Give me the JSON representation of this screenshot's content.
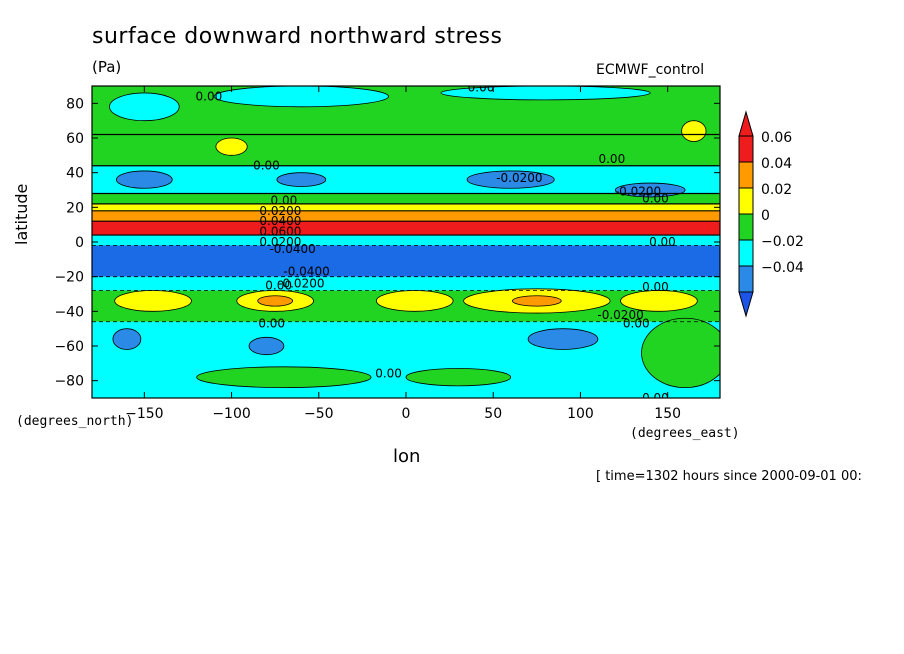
{
  "chart_data": {
    "type": "heatmap",
    "title": "surface downward northward stress",
    "units": "(Pa)",
    "source_label": "ECMWF_control",
    "xlabel": "lon",
    "ylabel": "latitude",
    "x_unit_label": "(degrees_east)",
    "y_unit_label": "(degrees_north)",
    "time_note": "[ time=1302 hours since 2000-09-01 00:",
    "xlim": [
      -180,
      180
    ],
    "ylim": [
      -90,
      90
    ],
    "x_ticks": [
      -150,
      -100,
      -50,
      0,
      50,
      100,
      150
    ],
    "x_tick_labels": [
      "−150",
      "−100",
      "−50",
      "0",
      "50",
      "100",
      "150"
    ],
    "y_ticks": [
      80,
      60,
      40,
      20,
      0,
      -20,
      -40,
      -60,
      -80
    ],
    "y_tick_labels": [
      "80",
      "60",
      "40",
      "20",
      "0",
      "−20",
      "−40",
      "−60",
      "−80"
    ],
    "colorbar": {
      "levels": [
        "0.06",
        "0.04",
        "0.02",
        "0",
        "−0.02",
        "−0.04"
      ],
      "colors": [
        "#ee1c1c",
        "#ff9a00",
        "#ffff00",
        "#22d422",
        "#00ffff",
        "#2a8ae6"
      ],
      "end_colors": {
        "top": "#ee1c1c",
        "bottom": "#1b54e6"
      }
    },
    "latitude_bands": [
      {
        "lat": [
          62,
          90
        ],
        "color": "#22d422"
      },
      {
        "lat": [
          44,
          62
        ],
        "color": "#22d422"
      },
      {
        "lat": [
          28,
          44
        ],
        "color": "#00ffff"
      },
      {
        "lat": [
          22,
          28
        ],
        "color": "#22d422"
      },
      {
        "lat": [
          18,
          22
        ],
        "color": "#ffff00"
      },
      {
        "lat": [
          12,
          18
        ],
        "color": "#ff9a00"
      },
      {
        "lat": [
          4,
          12
        ],
        "color": "#ee1c1c"
      },
      {
        "lat": [
          -2,
          4
        ],
        "color": "#00ffff"
      },
      {
        "lat": [
          -20,
          -2
        ],
        "color": "#1b6ae6"
      },
      {
        "lat": [
          -28,
          -20
        ],
        "color": "#00ffff"
      },
      {
        "lat": [
          -46,
          -28
        ],
        "color": "#22d422"
      },
      {
        "lat": [
          -90,
          -46
        ],
        "color": "#00ffff"
      }
    ],
    "blobs": [
      {
        "lon": -150,
        "lat": 78,
        "rlon": 20,
        "rlat": 8,
        "color": "#00ffff"
      },
      {
        "lon": -60,
        "lat": 84,
        "rlon": 50,
        "rlat": 6,
        "color": "#00ffff"
      },
      {
        "lon": 80,
        "lat": 86,
        "rlon": 60,
        "rlat": 4,
        "color": "#00ffff"
      },
      {
        "lon": -100,
        "lat": 55,
        "rlon": 9,
        "rlat": 5,
        "color": "#ffff00"
      },
      {
        "lon": 165,
        "lat": 64,
        "rlon": 7,
        "rlat": 6,
        "color": "#ffff00"
      },
      {
        "lon": -150,
        "lat": 36,
        "rlon": 16,
        "rlat": 5,
        "color": "#2a8ae6"
      },
      {
        "lon": -60,
        "lat": 36,
        "rlon": 14,
        "rlat": 4,
        "color": "#2a8ae6"
      },
      {
        "lon": 60,
        "lat": 36,
        "rlon": 25,
        "rlat": 5,
        "color": "#2a8ae6"
      },
      {
        "lon": 140,
        "lat": 30,
        "rlon": 20,
        "rlat": 4,
        "color": "#2a8ae6"
      },
      {
        "lon": -145,
        "lat": -34,
        "rlon": 22,
        "rlat": 6,
        "color": "#ffff00"
      },
      {
        "lon": -75,
        "lat": -34,
        "rlon": 22,
        "rlat": 6,
        "color": "#ffff00"
      },
      {
        "lon": -75,
        "lat": -34,
        "rlon": 10,
        "rlat": 3,
        "color": "#ff9a00"
      },
      {
        "lon": 5,
        "lat": -34,
        "rlon": 22,
        "rlat": 6,
        "color": "#ffff00"
      },
      {
        "lon": 75,
        "lat": -34,
        "rlon": 42,
        "rlat": 7,
        "color": "#ffff00"
      },
      {
        "lon": 75,
        "lat": -34,
        "rlon": 14,
        "rlat": 3,
        "color": "#ff9a00"
      },
      {
        "lon": 145,
        "lat": -34,
        "rlon": 22,
        "rlat": 6,
        "color": "#ffff00"
      },
      {
        "lon": -160,
        "lat": -56,
        "rlon": 8,
        "rlat": 6,
        "color": "#2a8ae6"
      },
      {
        "lon": -80,
        "lat": -60,
        "rlon": 10,
        "rlat": 5,
        "color": "#2a8ae6"
      },
      {
        "lon": 90,
        "lat": -56,
        "rlon": 20,
        "rlat": 6,
        "color": "#2a8ae6"
      },
      {
        "lon": -70,
        "lat": -78,
        "rlon": 50,
        "rlat": 6,
        "color": "#22d422"
      },
      {
        "lon": 30,
        "lat": -78,
        "rlon": 30,
        "rlat": 5,
        "color": "#22d422"
      },
      {
        "lon": 160,
        "lat": -64,
        "rlon": 25,
        "rlat": 20,
        "color": "#22d422"
      }
    ],
    "contour_labels": [
      {
        "text": "0.00",
        "lon": -113,
        "lat": 84
      },
      {
        "text": "0.00",
        "lon": 43,
        "lat": 89
      },
      {
        "text": "0.00",
        "lon": -80,
        "lat": 44
      },
      {
        "text": "0.00",
        "lon": 118,
        "lat": 48
      },
      {
        "text": "-0.0200",
        "lon": 65,
        "lat": 37
      },
      {
        "text": "-0.0200",
        "lon": 133,
        "lat": 29
      },
      {
        "text": "0.00",
        "lon": 143,
        "lat": 25
      },
      {
        "text": "0.00",
        "lon": -70,
        "lat": 24
      },
      {
        "text": "0.0200",
        "lon": -72,
        "lat": 18
      },
      {
        "text": "0.0400",
        "lon": -72,
        "lat": 12
      },
      {
        "text": "0.0600",
        "lon": -72,
        "lat": 6
      },
      {
        "text": "0.0200",
        "lon": -72,
        "lat": 0
      },
      {
        "text": "0.00",
        "lon": 147,
        "lat": 0
      },
      {
        "text": "-0.0400",
        "lon": -65,
        "lat": -4
      },
      {
        "text": "-0.0400",
        "lon": -57,
        "lat": -17
      },
      {
        "text": "-0.0200",
        "lon": -60,
        "lat": -24
      },
      {
        "text": "0.00",
        "lon": -73,
        "lat": -25
      },
      {
        "text": "0.00",
        "lon": 143,
        "lat": -26
      },
      {
        "text": "-0.0200",
        "lon": 123,
        "lat": -42
      },
      {
        "text": "0.00",
        "lon": 132,
        "lat": -47
      },
      {
        "text": "0.00",
        "lon": -77,
        "lat": -47
      },
      {
        "text": "0.00",
        "lon": -10,
        "lat": -76
      },
      {
        "text": "0.00",
        "lon": 143,
        "lat": -90
      }
    ]
  }
}
